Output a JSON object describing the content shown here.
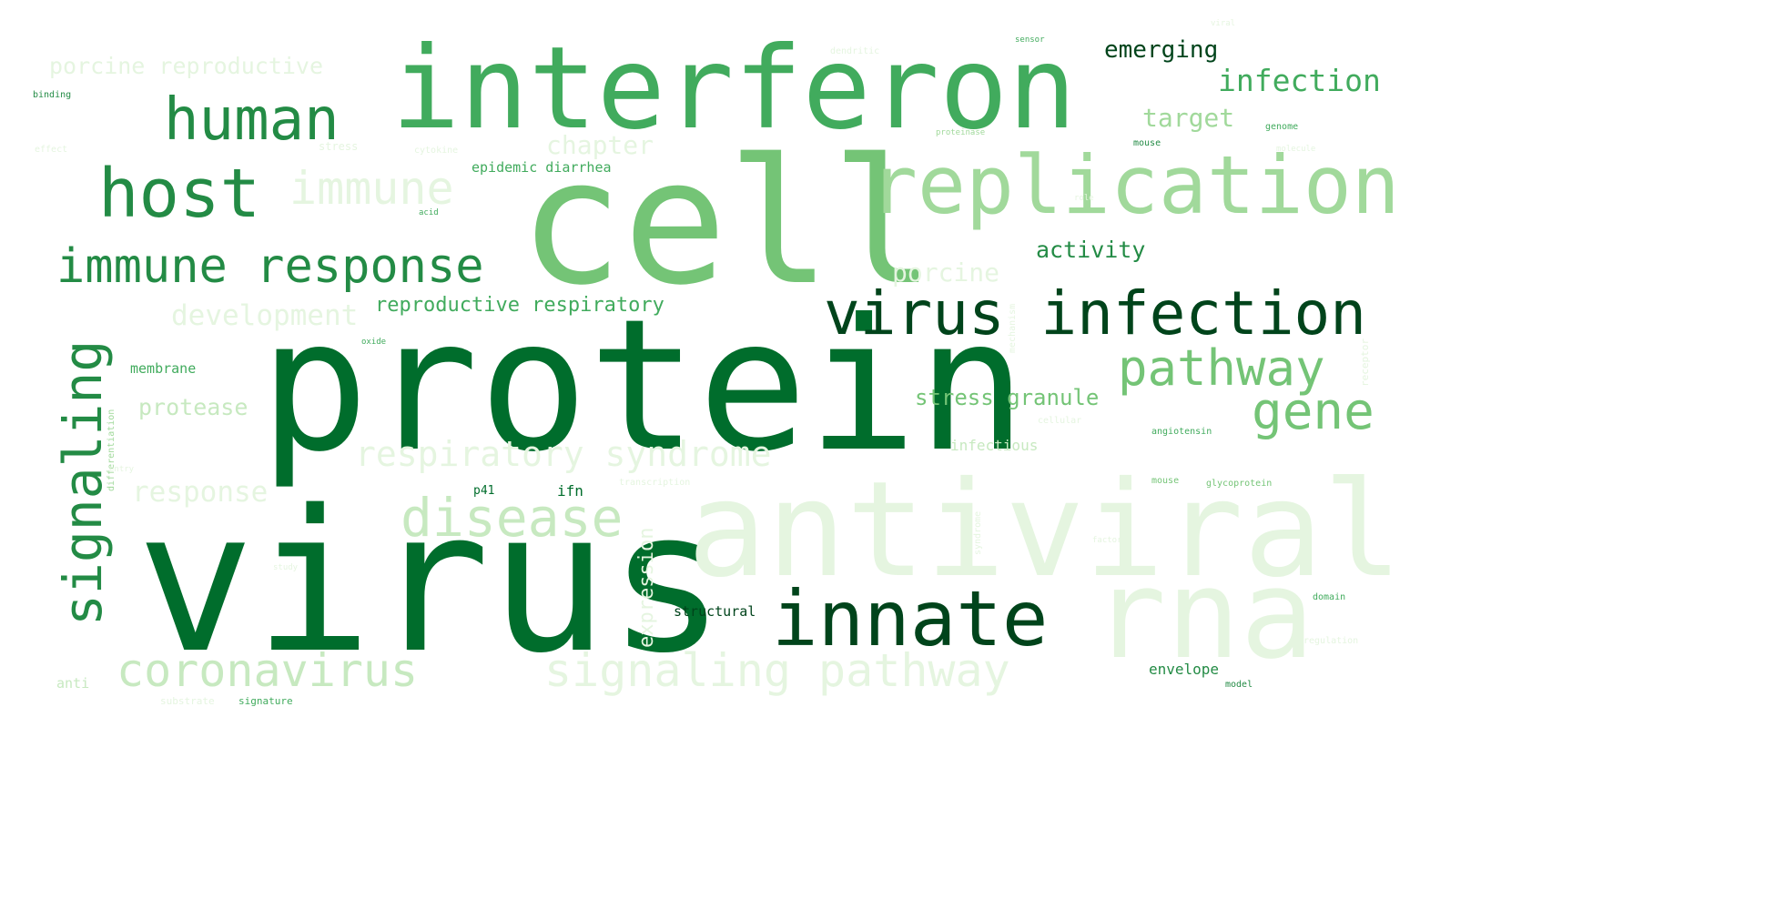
{
  "palette": {
    "darkest": "#00441b",
    "dark": "#006d2c",
    "mid_dark": "#238b45",
    "mid": "#41ab5d",
    "mid_light": "#74c476",
    "light": "#a1d99b",
    "lighter": "#c7e9c0",
    "lightest": "#e5f5e0"
  },
  "words": {
    "virus": "virus",
    "protein": "protein",
    "cell": "cell",
    "interferon": "interferon",
    "antiviral": "antiviral",
    "rna": "rna",
    "replication": "replication",
    "innate": "innate",
    "virus_infection": "virus infection",
    "host": "host",
    "human": "human",
    "immune_response": "immune response",
    "signaling": "signaling",
    "disease": "disease",
    "coronavirus": "coronavirus",
    "signaling_pathway": "signaling pathway",
    "pathway": "pathway",
    "gene": "gene",
    "immune": "immune",
    "respiratory_syndrome": "respiratory syndrome",
    "development": "development",
    "infection": "infection",
    "emerging": "emerging",
    "target": "target",
    "chapter": "chapter",
    "porcine_reproductive": "porcine reproductive",
    "reproductive_respiratory": "reproductive respiratory",
    "activity": "activity",
    "stress_granule": "stress granule",
    "porcine": "porcine",
    "protease": "protease",
    "response": "response",
    "expression": "expression",
    "epidemic_diarrhea": "epidemic diarrhea",
    "structural": "structural",
    "membrane": "membrane",
    "infectious": "infectious",
    "envelope": "envelope",
    "ifn": "ifn",
    "p41": "p41",
    "anti": "anti",
    "substrate": "substrate",
    "signature": "signature",
    "model": "model",
    "domain": "domain",
    "glycoprotein": "glycoprotein",
    "angiotensin": "angiotensin",
    "mouse": "mouse",
    "genome": "genome",
    "binding": "binding",
    "effect": "effect",
    "stress": "stress",
    "cytokine": "cytokine",
    "acid": "acid",
    "oxide": "oxide",
    "sensor": "sensor",
    "proteinase": "proteinase",
    "differentiation": "differentiation",
    "dendritic": "dendritic",
    "cellular": "cellular",
    "mechanism": "mechanism",
    "regulation": "regulation",
    "transcription": "transcription",
    "receptor": "receptor",
    "molecule": "molecule",
    "factor": "factor",
    "viral": "viral",
    "entry": "entry",
    "role": "role",
    "study": "study",
    "syndrome": "syndrome"
  }
}
